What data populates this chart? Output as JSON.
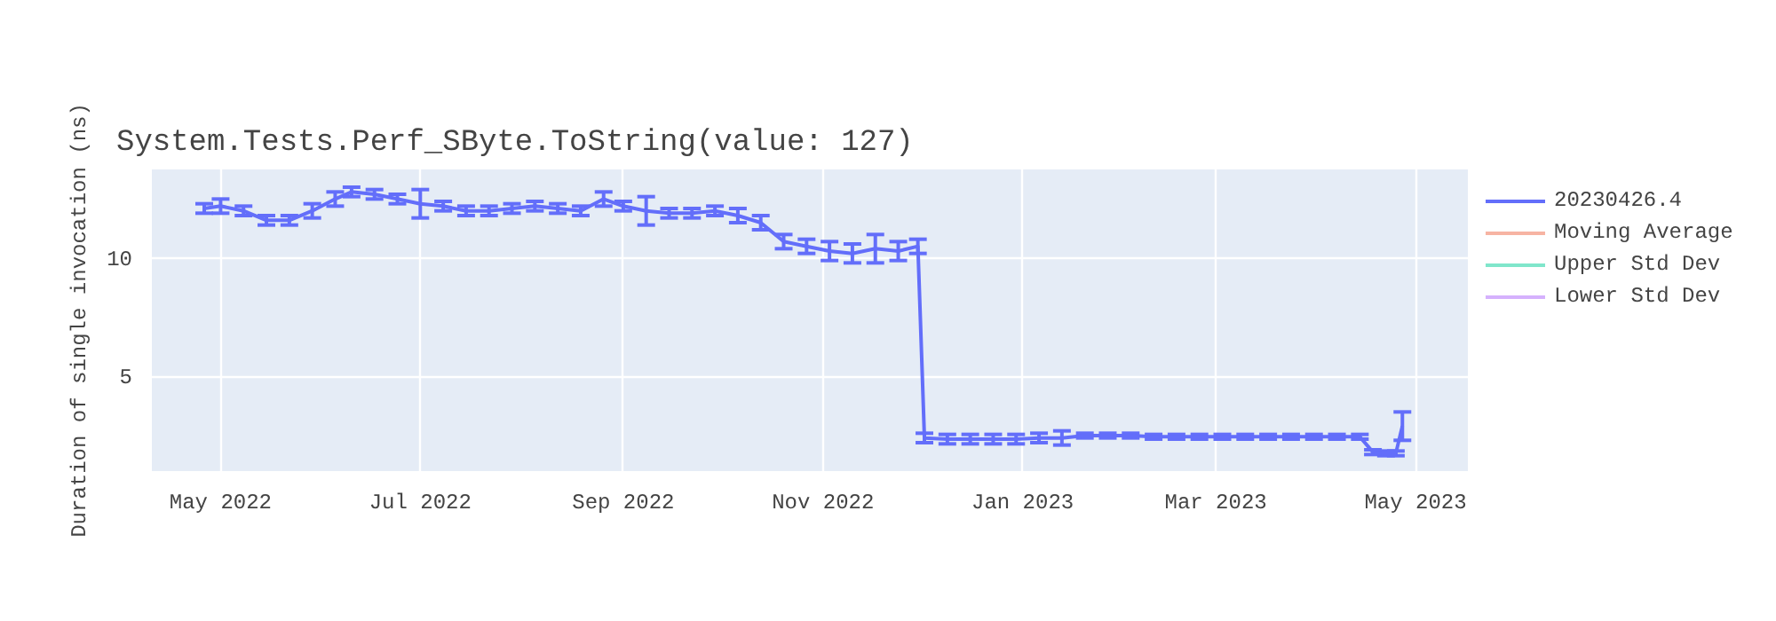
{
  "chart_data": {
    "type": "line",
    "title": "System.Tests.Perf_SByte.ToString(value: 127)",
    "ylabel": "Duration of single invocation (ns)",
    "x": [
      "2022-04-26",
      "2022-05-01",
      "2022-05-08",
      "2022-05-15",
      "2022-05-22",
      "2022-05-29",
      "2022-06-05",
      "2022-06-10",
      "2022-06-17",
      "2022-06-24",
      "2022-07-01",
      "2022-07-08",
      "2022-07-15",
      "2022-07-22",
      "2022-07-29",
      "2022-08-05",
      "2022-08-12",
      "2022-08-19",
      "2022-08-26",
      "2022-09-01",
      "2022-09-08",
      "2022-09-15",
      "2022-09-22",
      "2022-09-29",
      "2022-10-06",
      "2022-10-13",
      "2022-10-20",
      "2022-10-27",
      "2022-11-03",
      "2022-11-10",
      "2022-11-17",
      "2022-11-24",
      "2022-11-30",
      "2022-12-02",
      "2022-12-09",
      "2022-12-16",
      "2022-12-23",
      "2022-12-30",
      "2023-01-06",
      "2023-01-13",
      "2023-01-20",
      "2023-01-27",
      "2023-02-03",
      "2023-02-10",
      "2023-02-17",
      "2023-02-24",
      "2023-03-03",
      "2023-03-10",
      "2023-03-17",
      "2023-03-24",
      "2023-03-31",
      "2023-04-07",
      "2023-04-14",
      "2023-04-18",
      "2023-04-22",
      "2023-04-25",
      "2023-04-27"
    ],
    "series": [
      {
        "name": "20230426.4",
        "color": "#636efa",
        "values": [
          12.1,
          12.2,
          12.0,
          11.6,
          11.6,
          12.0,
          12.5,
          12.8,
          12.7,
          12.5,
          12.3,
          12.2,
          12.0,
          12.0,
          12.1,
          12.2,
          12.1,
          12.0,
          12.5,
          12.2,
          12.0,
          11.9,
          11.9,
          12.0,
          11.8,
          11.5,
          10.7,
          10.5,
          10.3,
          10.2,
          10.4,
          10.3,
          10.5,
          2.4,
          2.35,
          2.35,
          2.35,
          2.35,
          2.4,
          2.4,
          2.5,
          2.5,
          2.5,
          2.45,
          2.45,
          2.45,
          2.45,
          2.45,
          2.45,
          2.45,
          2.45,
          2.45,
          2.45,
          1.8,
          1.75,
          1.75,
          2.9
        ],
        "errors": [
          0.2,
          0.3,
          0.2,
          0.2,
          0.2,
          0.3,
          0.3,
          0.2,
          0.2,
          0.2,
          0.6,
          0.2,
          0.2,
          0.2,
          0.2,
          0.2,
          0.2,
          0.2,
          0.3,
          0.2,
          0.6,
          0.2,
          0.2,
          0.2,
          0.3,
          0.3,
          0.3,
          0.3,
          0.4,
          0.4,
          0.6,
          0.4,
          0.3,
          0.2,
          0.2,
          0.2,
          0.2,
          0.2,
          0.2,
          0.3,
          0.1,
          0.1,
          0.1,
          0.1,
          0.1,
          0.1,
          0.1,
          0.1,
          0.1,
          0.1,
          0.1,
          0.1,
          0.1,
          0.1,
          0.1,
          0.1,
          0.6
        ]
      },
      {
        "name": "Moving Average",
        "color": "#f7b4a3",
        "values": [
          null,
          null,
          null,
          null,
          null,
          null,
          null,
          null,
          null,
          null,
          null,
          null,
          null,
          null,
          null,
          null,
          null,
          null,
          null,
          null,
          null,
          null,
          null,
          null,
          null,
          null,
          null,
          null,
          null,
          null,
          null,
          null,
          null,
          null,
          null,
          null,
          null,
          null,
          null,
          null,
          null,
          null,
          null,
          null,
          null,
          null,
          null,
          null,
          null,
          null,
          null,
          null,
          null,
          null,
          null,
          null,
          null
        ]
      },
      {
        "name": "Upper Std Dev",
        "color": "#80e6cb",
        "values": [
          null,
          null,
          null,
          null,
          null,
          null,
          null,
          null,
          null,
          null,
          null,
          null,
          null,
          null,
          null,
          null,
          null,
          null,
          null,
          null,
          null,
          null,
          null,
          null,
          null,
          null,
          null,
          null,
          null,
          null,
          null,
          null,
          null,
          null,
          null,
          null,
          null,
          null,
          null,
          null,
          null,
          null,
          null,
          null,
          null,
          null,
          null,
          null,
          null,
          null,
          null,
          null,
          null,
          null,
          null,
          null,
          null
        ]
      },
      {
        "name": "Lower Std Dev",
        "color": "#d5b1fd",
        "values": [
          null,
          null,
          null,
          null,
          null,
          null,
          null,
          null,
          null,
          null,
          null,
          null,
          null,
          null,
          null,
          null,
          null,
          null,
          null,
          null,
          null,
          null,
          null,
          null,
          null,
          null,
          null,
          null,
          null,
          null,
          null,
          null,
          null,
          null,
          null,
          null,
          null,
          null,
          null,
          null,
          null,
          null,
          null,
          null,
          null,
          null,
          null,
          null,
          null,
          null,
          null,
          null,
          null,
          null,
          null,
          null,
          null
        ]
      }
    ],
    "xlim": [
      "2022-04-10",
      "2023-05-17"
    ],
    "xticks": [
      {
        "value": "2022-05-01",
        "label": "May 2022"
      },
      {
        "value": "2022-07-01",
        "label": "Jul 2022"
      },
      {
        "value": "2022-09-01",
        "label": "Sep 2022"
      },
      {
        "value": "2022-11-01",
        "label": "Nov 2022"
      },
      {
        "value": "2023-01-01",
        "label": "Jan 2023"
      },
      {
        "value": "2023-03-01",
        "label": "Mar 2023"
      },
      {
        "value": "2023-05-01",
        "label": "May 2023"
      }
    ],
    "ylim": [
      1.0,
      13.75
    ],
    "yticks": [
      5,
      10
    ],
    "grid": true,
    "legend": "right",
    "marker": "none",
    "line_style": "solid"
  }
}
